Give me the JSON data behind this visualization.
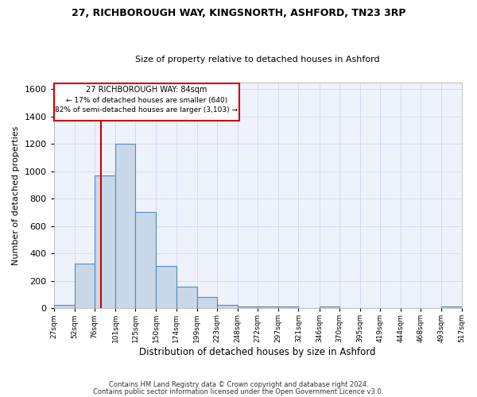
{
  "title1": "27, RICHBOROUGH WAY, KINGSNORTH, ASHFORD, TN23 3RP",
  "title2": "Size of property relative to detached houses in Ashford",
  "xlabel": "Distribution of detached houses by size in Ashford",
  "ylabel": "Number of detached properties",
  "bin_edges": [
    27,
    52,
    76,
    101,
    125,
    150,
    174,
    199,
    223,
    248,
    272,
    297,
    321,
    346,
    370,
    395,
    419,
    444,
    468,
    493,
    517
  ],
  "bar_heights": [
    25,
    325,
    970,
    1200,
    700,
    310,
    155,
    80,
    25,
    15,
    15,
    15,
    0,
    15,
    0,
    0,
    0,
    0,
    0,
    15
  ],
  "bar_color": "#c8d8e8",
  "bar_edge_color": "#5588bb",
  "red_line_x": 84,
  "ylim": [
    0,
    1650
  ],
  "yticks": [
    0,
    200,
    400,
    600,
    800,
    1000,
    1200,
    1400,
    1600
  ],
  "annotation_title": "27 RICHBOROUGH WAY: 84sqm",
  "annotation_line1": "← 17% of detached houses are smaller (640)",
  "annotation_line2": "82% of semi-detached houses are larger (3,103) →",
  "annotation_box_color": "#ffffff",
  "annotation_border_color": "#cc0000",
  "footnote1": "Contains HM Land Registry data © Crown copyright and database right 2024.",
  "footnote2": "Contains public sector information licensed under the Open Government Licence v3.0.",
  "bg_color": "#eef2fb",
  "grid_color": "#d0d8f0"
}
